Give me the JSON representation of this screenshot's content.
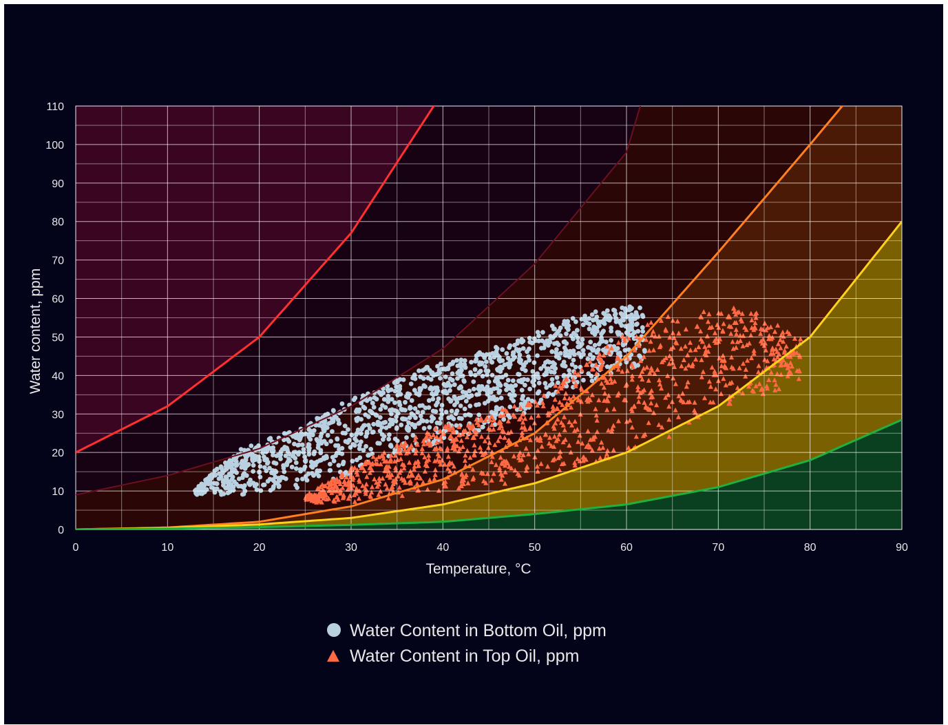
{
  "chart_data": {
    "type": "scatter",
    "title": "",
    "xlabel": "Temperature, °C",
    "ylabel": "Water content, ppm",
    "xlim": [
      0,
      90
    ],
    "ylim": [
      0,
      110
    ],
    "x_ticks": [
      0,
      10,
      20,
      30,
      40,
      50,
      60,
      70,
      80,
      90
    ],
    "y_ticks": [
      0,
      10,
      20,
      30,
      40,
      50,
      60,
      70,
      80,
      90,
      100,
      110
    ],
    "grid": true,
    "legend_position": "bottom-center",
    "curves": [
      {
        "color": "#ff3030",
        "points": [
          [
            0,
            20
          ],
          [
            10,
            32
          ],
          [
            20,
            50
          ],
          [
            30,
            77
          ],
          [
            39,
            110
          ]
        ]
      },
      {
        "color": "#6a1020",
        "points": [
          [
            0,
            9
          ],
          [
            10,
            14
          ],
          [
            20,
            21
          ],
          [
            30,
            32
          ],
          [
            40,
            47
          ],
          [
            50,
            69
          ],
          [
            60,
            98
          ],
          [
            61.5,
            110
          ]
        ]
      },
      {
        "color": "#ff8020",
        "points": [
          [
            0,
            0
          ],
          [
            10,
            0.5
          ],
          [
            20,
            2
          ],
          [
            30,
            6
          ],
          [
            40,
            13
          ],
          [
            50,
            25
          ],
          [
            60,
            45
          ],
          [
            70,
            72
          ],
          [
            80,
            100
          ],
          [
            83.5,
            110
          ]
        ]
      },
      {
        "color": "#ffd21a",
        "points": [
          [
            0,
            0
          ],
          [
            10,
            0.4
          ],
          [
            20,
            1.3
          ],
          [
            30,
            3
          ],
          [
            40,
            6.5
          ],
          [
            50,
            12
          ],
          [
            60,
            20
          ],
          [
            70,
            32
          ],
          [
            80,
            50
          ],
          [
            90,
            80
          ]
        ]
      },
      {
        "color": "#20b040",
        "points": [
          [
            0,
            0
          ],
          [
            10,
            0.2
          ],
          [
            20,
            0.6
          ],
          [
            30,
            1.2
          ],
          [
            40,
            2
          ],
          [
            50,
            4
          ],
          [
            60,
            6.5
          ],
          [
            70,
            11
          ],
          [
            80,
            18
          ],
          [
            90,
            28.5
          ]
        ]
      }
    ],
    "zone_colors": [
      "#3a0520",
      "#160212",
      "#2a0606",
      "#4a1a06",
      "#7a6000",
      "#0a4020"
    ],
    "series": [
      {
        "name": "Water Content in Bottom Oil, ppm",
        "marker": "circle",
        "color": "#b8d0e0"
      },
      {
        "name": "Water Content in Top Oil, ppm",
        "marker": "triangle",
        "color": "#ff6a45"
      }
    ],
    "regions": [
      {
        "series": 0,
        "x_min": 13,
        "x_max": 62,
        "count": 1400,
        "upper": [
          [
            13,
            11
          ],
          [
            18,
            21
          ],
          [
            25,
            27
          ],
          [
            29,
            33
          ],
          [
            33,
            37
          ],
          [
            38,
            42
          ],
          [
            44,
            46
          ],
          [
            48,
            49
          ],
          [
            54,
            55
          ],
          [
            59,
            58
          ],
          [
            62,
            58
          ]
        ],
        "lower": [
          [
            13,
            9
          ],
          [
            18,
            9
          ],
          [
            25,
            11
          ],
          [
            30,
            14
          ],
          [
            36,
            20
          ],
          [
            42,
            24
          ],
          [
            47,
            28
          ],
          [
            52,
            34
          ],
          [
            57,
            39
          ],
          [
            62,
            43
          ]
        ]
      },
      {
        "series": 1,
        "x_min": 25,
        "x_max": 79,
        "count": 1100,
        "upper": [
          [
            25,
            9
          ],
          [
            30,
            16
          ],
          [
            35,
            22
          ],
          [
            40,
            27
          ],
          [
            45,
            30
          ],
          [
            50,
            34
          ],
          [
            54,
            40
          ],
          [
            58,
            48
          ],
          [
            62,
            54
          ],
          [
            66,
            56
          ],
          [
            70,
            57
          ],
          [
            73,
            58
          ],
          [
            75,
            55
          ],
          [
            79,
            50
          ]
        ],
        "lower": [
          [
            25,
            7
          ],
          [
            30,
            7
          ],
          [
            35,
            8
          ],
          [
            40,
            10
          ],
          [
            45,
            11
          ],
          [
            50,
            13
          ],
          [
            55,
            16
          ],
          [
            60,
            20
          ],
          [
            65,
            24
          ],
          [
            70,
            30
          ],
          [
            75,
            35
          ],
          [
            79,
            38
          ]
        ]
      }
    ],
    "legend": {
      "items": [
        {
          "label": "Water Content in Bottom Oil, ppm",
          "marker": "circle",
          "color": "#b8d0e0"
        },
        {
          "label": "Water Content in Top Oil, ppm",
          "marker": "triangle",
          "color": "#ff6a45"
        }
      ]
    }
  }
}
